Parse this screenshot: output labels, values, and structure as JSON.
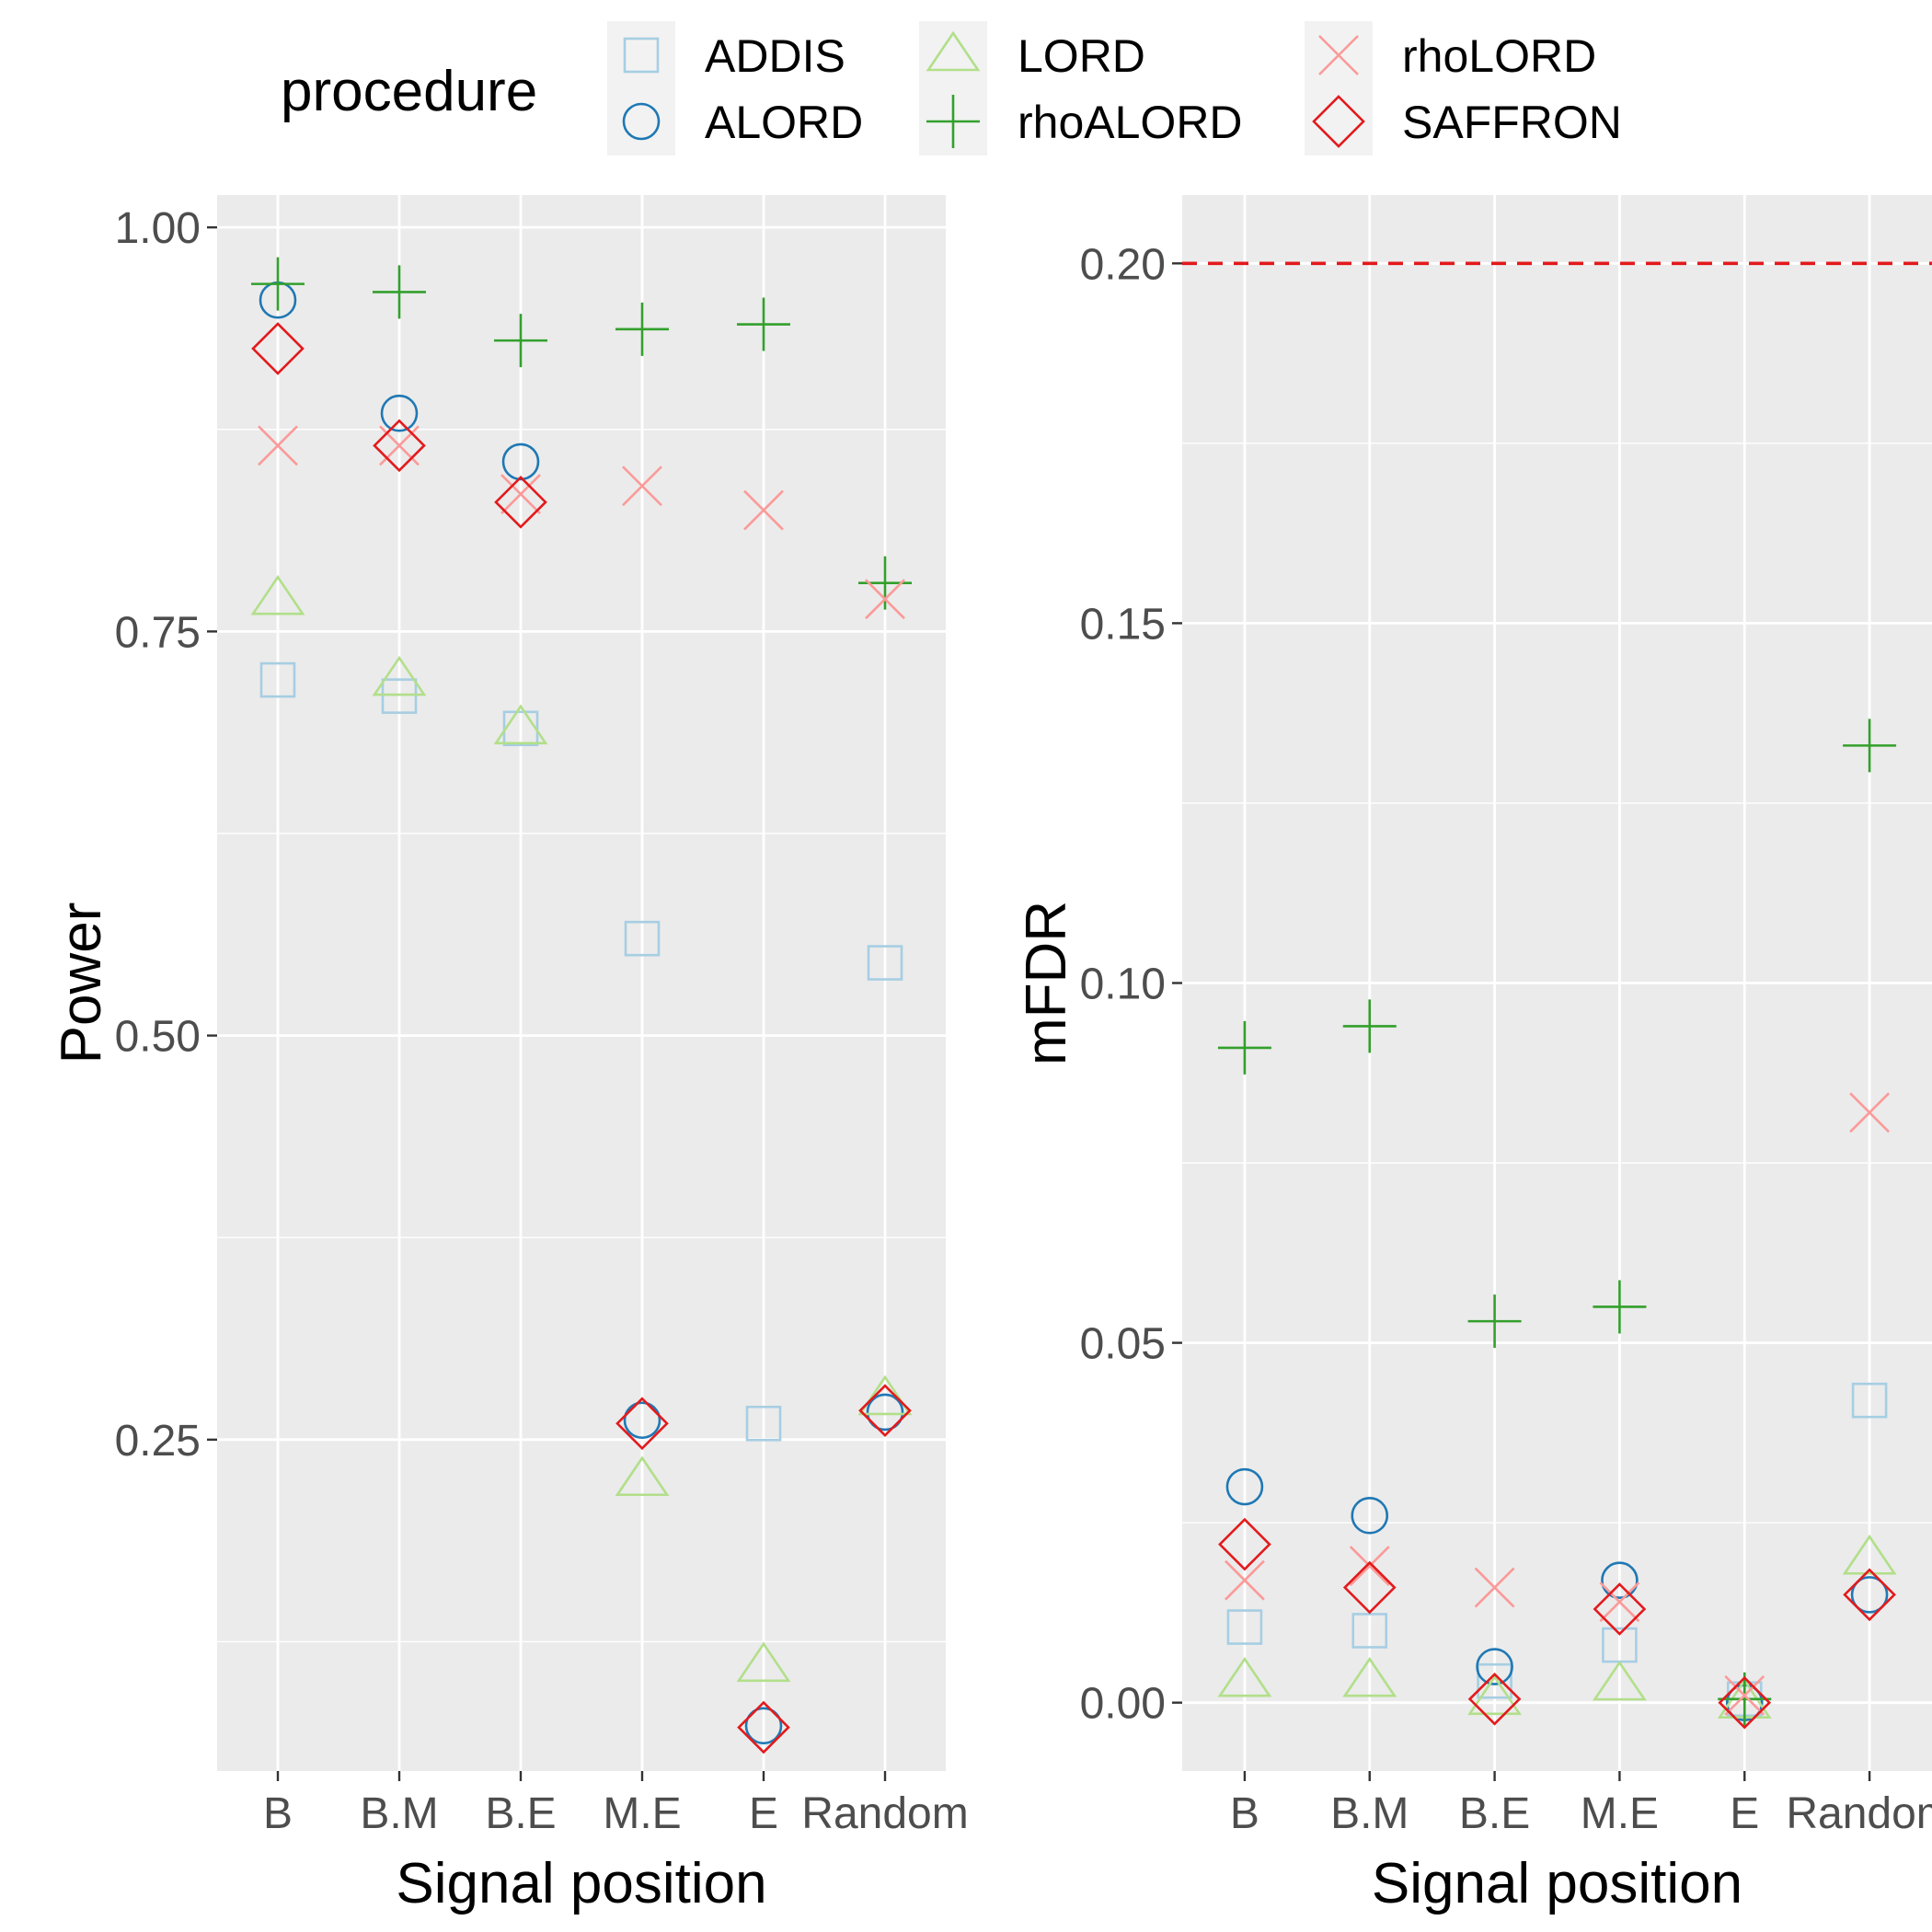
{
  "legend": {
    "title": "procedure",
    "items": [
      {
        "name": "ADDIS",
        "shape": "square",
        "color": "#a6cee3"
      },
      {
        "name": "ALORD",
        "shape": "circle",
        "color": "#1f78b4"
      },
      {
        "name": "LORD",
        "shape": "triangle",
        "color": "#b2df8a"
      },
      {
        "name": "rhoALORD",
        "shape": "plus",
        "color": "#33a02c"
      },
      {
        "name": "rhoLORD",
        "shape": "cross",
        "color": "#fb9a99"
      },
      {
        "name": "SAFFRON",
        "shape": "diamond",
        "color": "#e31a1c"
      }
    ]
  },
  "colors": {
    "panel_background": "#ebebeb",
    "grid": "#ffffff",
    "reference_line": "#e31a1c"
  },
  "chart_data": [
    {
      "type": "scatter",
      "title": "",
      "xlabel": "Signal position",
      "ylabel": "Power",
      "categories": [
        "B",
        "B.M",
        "B.E",
        "M.E",
        "E",
        "Random"
      ],
      "ylim": [
        0.045,
        1.02
      ],
      "yticks": [
        0.25,
        0.5,
        0.75,
        1.0
      ],
      "ytick_labels": [
        "0.25",
        "0.50",
        "0.75",
        "1.00"
      ],
      "grid": true,
      "series": [
        {
          "name": "ADDIS",
          "values": [
            0.72,
            0.71,
            0.69,
            0.56,
            0.26,
            0.545
          ]
        },
        {
          "name": "ALORD",
          "values": [
            0.955,
            0.885,
            0.855,
            0.262,
            0.073,
            0.267
          ]
        },
        {
          "name": "LORD",
          "values": [
            0.77,
            0.72,
            0.69,
            0.225,
            0.11,
            0.275
          ]
        },
        {
          "name": "rhoALORD",
          "values": [
            0.965,
            0.96,
            0.93,
            0.937,
            0.94,
            0.78
          ]
        },
        {
          "name": "rhoLORD",
          "values": [
            0.865,
            0.865,
            0.835,
            0.84,
            0.825,
            0.77
          ]
        },
        {
          "name": "SAFFRON",
          "values": [
            0.925,
            0.865,
            0.83,
            0.26,
            0.072,
            0.268
          ]
        }
      ]
    },
    {
      "type": "scatter",
      "title": "",
      "xlabel": "Signal position",
      "ylabel": "mFDR",
      "categories": [
        "B",
        "B.M",
        "B.E",
        "M.E",
        "E",
        "Random"
      ],
      "ylim": [
        -0.0095,
        0.2095
      ],
      "yticks": [
        0.0,
        0.05,
        0.1,
        0.15,
        0.2
      ],
      "ytick_labels": [
        "0.00",
        "0.05",
        "0.10",
        "0.15",
        "0.20"
      ],
      "grid": true,
      "reference_line": {
        "y": 0.2,
        "style": "dashed"
      },
      "series": [
        {
          "name": "ADDIS",
          "values": [
            0.0105,
            0.01,
            0.003,
            0.008,
            0.0005,
            0.042
          ]
        },
        {
          "name": "ALORD",
          "values": [
            0.03,
            0.026,
            0.005,
            0.017,
            0.0,
            0.015
          ]
        },
        {
          "name": "LORD",
          "values": [
            0.003,
            0.003,
            0.0005,
            0.0025,
            0.0,
            0.02
          ]
        },
        {
          "name": "rhoALORD",
          "values": [
            0.091,
            0.094,
            0.053,
            0.055,
            0.0005,
            0.133
          ]
        },
        {
          "name": "rhoLORD",
          "values": [
            0.017,
            0.019,
            0.016,
            0.014,
            0.001,
            0.082
          ]
        },
        {
          "name": "SAFFRON",
          "values": [
            0.022,
            0.016,
            0.0005,
            0.013,
            0.0,
            0.015
          ]
        }
      ]
    }
  ]
}
